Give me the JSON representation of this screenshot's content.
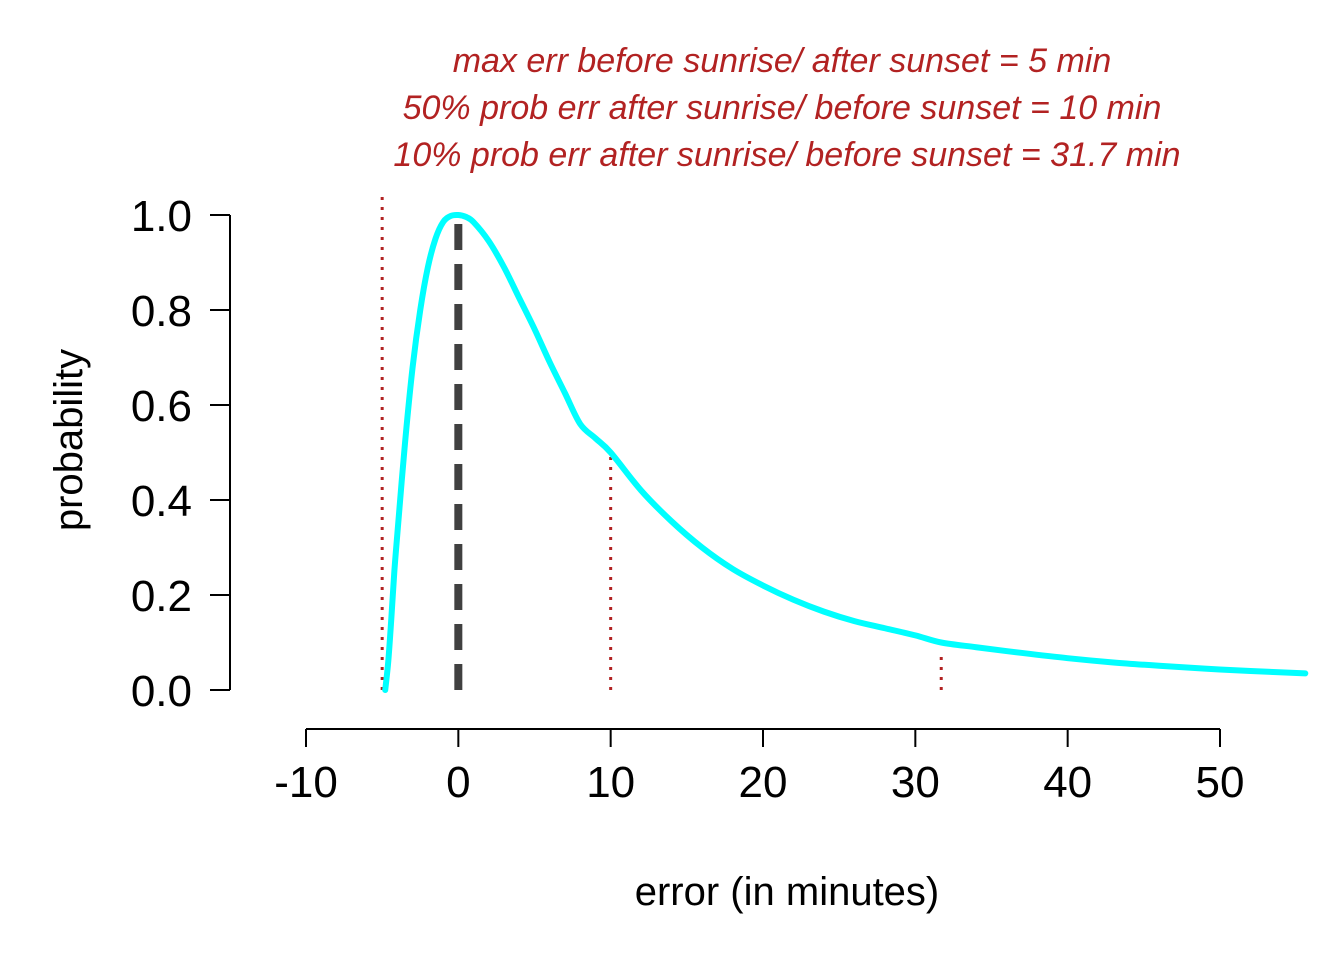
{
  "chart_data": {
    "type": "line",
    "title_lines": [
      "max err before sunrise/ after sunset = 5 min",
      "50% prob err after sunrise/ before sunset = 10 min",
      "10% prob err after sunrise/ before sunset = 31.7 min"
    ],
    "xlabel": "error (in minutes)",
    "ylabel": "probability",
    "xlim": [
      -10,
      50
    ],
    "ylim": [
      0,
      1
    ],
    "x_ticks": [
      -10,
      0,
      10,
      20,
      30,
      40,
      50
    ],
    "x_tick_labels": [
      "-10",
      "0",
      "10",
      "20",
      "30",
      "40",
      "50"
    ],
    "y_ticks": [
      0,
      0.2,
      0.4,
      0.6,
      0.8,
      1.0
    ],
    "y_tick_labels": [
      "0.0",
      "0.2",
      "0.4",
      "0.6",
      "0.8",
      "1.0"
    ],
    "grid": false,
    "series": [
      {
        "x": [
          -4.8,
          -4.6,
          -4.4,
          -4.2,
          -4.0,
          -3.5,
          -3.0,
          -2.5,
          -2.0,
          -1.5,
          -1.0,
          -0.5,
          0.0,
          0.5,
          1.0,
          2.0,
          3.0,
          4.0,
          5.0,
          6.0,
          7.0,
          8.0,
          9.0,
          10.0,
          12.0,
          14.0,
          16.0,
          18.0,
          20.0,
          22.0,
          24.0,
          26.0,
          28.0,
          30.0,
          31.7,
          34.0,
          37.0,
          40.0,
          43.0,
          46.0,
          49.0,
          52.0,
          55.6
        ],
        "y": [
          0.0,
          0.06,
          0.15,
          0.25,
          0.33,
          0.52,
          0.68,
          0.8,
          0.89,
          0.95,
          0.985,
          0.998,
          1.0,
          0.996,
          0.985,
          0.945,
          0.89,
          0.825,
          0.76,
          0.69,
          0.625,
          0.56,
          0.53,
          0.5,
          0.42,
          0.355,
          0.3,
          0.255,
          0.22,
          0.19,
          0.165,
          0.145,
          0.13,
          0.115,
          0.1,
          0.09,
          0.078,
          0.067,
          0.058,
          0.051,
          0.045,
          0.04,
          0.035
        ],
        "color": "#00ffff"
      }
    ],
    "reference_lines": [
      {
        "x": 0,
        "ymax": 1.0,
        "style": "dashed",
        "color": "#404040"
      },
      {
        "x": -5,
        "ymax": 1.05,
        "style": "dotted",
        "color": "#b22222"
      },
      {
        "x": 10,
        "ymax": 0.5,
        "style": "dotted",
        "color": "#b22222"
      },
      {
        "x": 31.7,
        "ymax": 0.08,
        "style": "dotted",
        "color": "#b22222"
      }
    ]
  }
}
